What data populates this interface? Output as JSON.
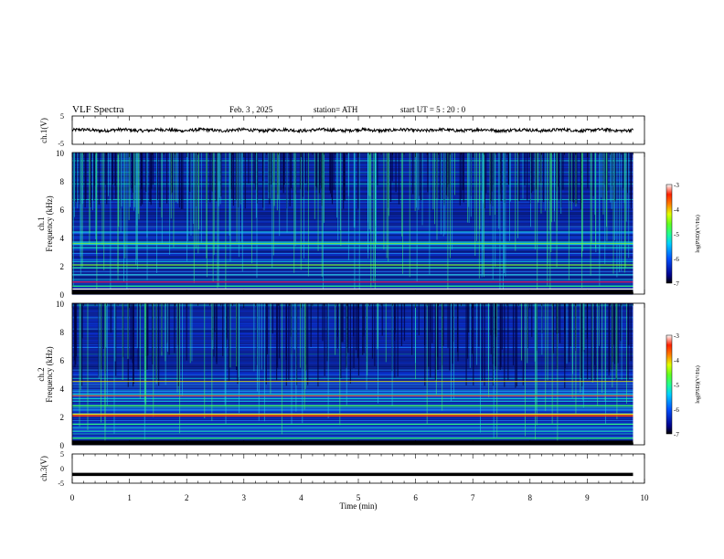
{
  "header": {
    "title": "VLF  Spectra",
    "date": "Feb. 3  , 2025",
    "station": "station= ATH",
    "start": "start  UT  =   5 : 20 : 0"
  },
  "chart_data": [
    {
      "type": "line",
      "title": "",
      "xlabel": "",
      "ylabel": "ch.1(V)",
      "xlim": [
        0,
        10
      ],
      "ylim": [
        -5,
        5
      ],
      "yticks": [
        "5",
        "-5"
      ],
      "series": [
        {
          "note": "waveform near 0 V, amplitude about 0.5 V",
          "x_range": [
            0,
            9.8
          ],
          "mean": 0.0,
          "amplitude": 0.5
        }
      ]
    },
    {
      "type": "heatmap",
      "title": "",
      "xlabel": "",
      "ylabel": "Frequency  (kHz)",
      "channel_label": "ch.1",
      "xlim": [
        0,
        9.8
      ],
      "ylim": [
        0,
        10
      ],
      "yticks": [
        "0",
        "2",
        "4",
        "6",
        "8",
        "10"
      ],
      "colorbar": {
        "label": "log(PSD)(V²/Hz)",
        "ticks": [
          "-3",
          "-4",
          "-5",
          "-6",
          "-7"
        ],
        "range": [
          -7,
          -3
        ]
      }
    },
    {
      "type": "heatmap",
      "title": "",
      "xlabel": "",
      "ylabel": "Frequency  (kHz)",
      "channel_label": "ch.2",
      "xlim": [
        0,
        9.8
      ],
      "ylim": [
        0,
        10
      ],
      "yticks": [
        "0",
        "2",
        "4",
        "6",
        "8",
        "10"
      ],
      "colorbar": {
        "label": "log(PSD)(V²/Hz)",
        "ticks": [
          "-3",
          "-4",
          "-5",
          "-6",
          "-7"
        ],
        "range": [
          -7,
          -3
        ]
      }
    },
    {
      "type": "line",
      "title": "",
      "xlabel": "Time  (min)",
      "ylabel": "ch.3(V)",
      "xlim": [
        0,
        10
      ],
      "ylim": [
        -5,
        5
      ],
      "yticks": [
        "5",
        "0",
        "-5"
      ],
      "xticks": [
        "0",
        "1",
        "2",
        "3",
        "4",
        "5",
        "6",
        "7",
        "8",
        "9",
        "10"
      ],
      "series": [
        {
          "note": "flat trace at about -2 V",
          "x_range": [
            0,
            9.8
          ],
          "mean": -2.0,
          "amplitude": 0.1
        }
      ]
    }
  ],
  "colors": {
    "trace": "#000000",
    "spectrogram_bg": "#0a1b8c",
    "accent_band": "#d6e81e"
  }
}
